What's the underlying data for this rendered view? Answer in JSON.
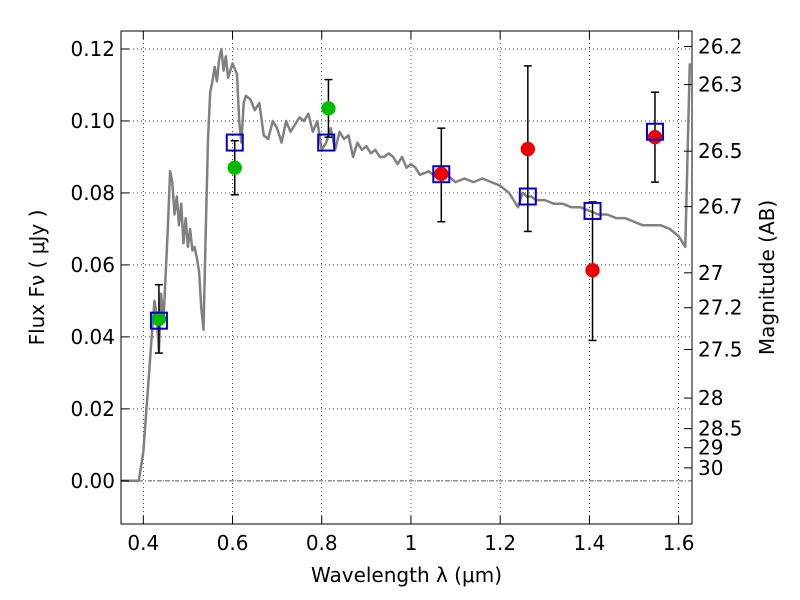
{
  "chart_data": {
    "type": "scatter",
    "xlabel": "Wavelength  λ (μm)",
    "ylabel": "Flux  Fν  ( μJy )",
    "ylabel_right": "Magnitude (AB)",
    "xlim": [
      0.35,
      1.63
    ],
    "ylim": [
      -0.012,
      0.125
    ],
    "grid": true,
    "x_ticks": [
      0.4,
      0.6,
      0.8,
      1.0,
      1.2,
      1.4,
      1.6
    ],
    "x_tick_labels": [
      "0.4",
      "0.6",
      "0.8",
      "1",
      "1.2",
      "1.4",
      "1.6"
    ],
    "y_ticks": [
      0.0,
      0.02,
      0.04,
      0.06,
      0.08,
      0.1,
      0.12
    ],
    "y_tick_labels": [
      "0.00",
      "0.02",
      "0.04",
      "0.06",
      "0.08",
      "0.10",
      "0.12"
    ],
    "right_ticks": [
      {
        "label": "26.2",
        "flux": 0.1207
      },
      {
        "label": "26.3",
        "flux": 0.1101
      },
      {
        "label": "26.5",
        "flux": 0.0916
      },
      {
        "label": "26.7",
        "flux": 0.0762
      },
      {
        "label": "27",
        "flux": 0.0578
      },
      {
        "label": "27.2",
        "flux": 0.0481
      },
      {
        "label": "27.5",
        "flux": 0.0365
      },
      {
        "label": "28",
        "flux": 0.023
      },
      {
        "label": "28.5",
        "flux": 0.0145
      },
      {
        "label": "29",
        "flux": 0.0092
      },
      {
        "label": "30",
        "flux": 0.0036
      }
    ],
    "colors": {
      "model": "#808080",
      "green": "#00bb00",
      "red": "#ee0000",
      "blue": "#0000cc",
      "errorbar": "#000000"
    },
    "model_spectrum": [
      [
        0.35,
        0.0
      ],
      [
        0.39,
        0.0
      ],
      [
        0.4,
        0.008
      ],
      [
        0.41,
        0.025
      ],
      [
        0.42,
        0.042
      ],
      [
        0.425,
        0.05
      ],
      [
        0.43,
        0.046
      ],
      [
        0.435,
        0.036
      ],
      [
        0.44,
        0.052
      ],
      [
        0.445,
        0.044
      ],
      [
        0.45,
        0.057
      ],
      [
        0.455,
        0.07
      ],
      [
        0.46,
        0.086
      ],
      [
        0.465,
        0.083
      ],
      [
        0.47,
        0.074
      ],
      [
        0.475,
        0.079
      ],
      [
        0.48,
        0.071
      ],
      [
        0.485,
        0.077
      ],
      [
        0.49,
        0.066
      ],
      [
        0.495,
        0.073
      ],
      [
        0.5,
        0.065
      ],
      [
        0.505,
        0.07
      ],
      [
        0.51,
        0.064
      ],
      [
        0.515,
        0.065
      ],
      [
        0.52,
        0.062
      ],
      [
        0.525,
        0.058
      ],
      [
        0.53,
        0.048
      ],
      [
        0.535,
        0.042
      ],
      [
        0.54,
        0.07
      ],
      [
        0.545,
        0.095
      ],
      [
        0.55,
        0.108
      ],
      [
        0.555,
        0.111
      ],
      [
        0.56,
        0.115
      ],
      [
        0.565,
        0.111
      ],
      [
        0.57,
        0.117
      ],
      [
        0.575,
        0.12
      ],
      [
        0.58,
        0.114
      ],
      [
        0.585,
        0.118
      ],
      [
        0.59,
        0.112
      ],
      [
        0.6,
        0.116
      ],
      [
        0.61,
        0.113
      ],
      [
        0.615,
        0.1
      ],
      [
        0.62,
        0.094
      ],
      [
        0.625,
        0.105
      ],
      [
        0.63,
        0.107
      ],
      [
        0.64,
        0.106
      ],
      [
        0.65,
        0.103
      ],
      [
        0.66,
        0.105
      ],
      [
        0.67,
        0.096
      ],
      [
        0.68,
        0.095
      ],
      [
        0.69,
        0.1
      ],
      [
        0.7,
        0.098
      ],
      [
        0.71,
        0.094
      ],
      [
        0.72,
        0.1
      ],
      [
        0.73,
        0.097
      ],
      [
        0.74,
        0.099
      ],
      [
        0.75,
        0.101
      ],
      [
        0.76,
        0.1
      ],
      [
        0.77,
        0.102
      ],
      [
        0.78,
        0.097
      ],
      [
        0.79,
        0.1
      ],
      [
        0.8,
        0.092
      ],
      [
        0.81,
        0.094
      ],
      [
        0.82,
        0.098
      ],
      [
        0.825,
        0.095
      ],
      [
        0.83,
        0.092
      ],
      [
        0.84,
        0.097
      ],
      [
        0.85,
        0.095
      ],
      [
        0.86,
        0.096
      ],
      [
        0.87,
        0.09
      ],
      [
        0.88,
        0.094
      ],
      [
        0.89,
        0.092
      ],
      [
        0.9,
        0.093
      ],
      [
        0.91,
        0.091
      ],
      [
        0.92,
        0.092
      ],
      [
        0.93,
        0.09
      ],
      [
        0.94,
        0.09
      ],
      [
        0.95,
        0.091
      ],
      [
        0.96,
        0.09
      ],
      [
        0.97,
        0.088
      ],
      [
        0.98,
        0.09
      ],
      [
        0.99,
        0.087
      ],
      [
        1.0,
        0.088
      ],
      [
        1.01,
        0.087
      ],
      [
        1.02,
        0.085
      ],
      [
        1.04,
        0.086
      ],
      [
        1.06,
        0.084
      ],
      [
        1.08,
        0.085
      ],
      [
        1.1,
        0.083
      ],
      [
        1.12,
        0.084
      ],
      [
        1.14,
        0.083
      ],
      [
        1.16,
        0.084
      ],
      [
        1.18,
        0.083
      ],
      [
        1.2,
        0.082
      ],
      [
        1.21,
        0.081
      ],
      [
        1.22,
        0.08
      ],
      [
        1.23,
        0.078
      ],
      [
        1.24,
        0.076
      ],
      [
        1.25,
        0.08
      ],
      [
        1.26,
        0.079
      ],
      [
        1.27,
        0.079
      ],
      [
        1.28,
        0.078
      ],
      [
        1.3,
        0.078
      ],
      [
        1.32,
        0.077
      ],
      [
        1.34,
        0.077
      ],
      [
        1.36,
        0.076
      ],
      [
        1.38,
        0.076
      ],
      [
        1.4,
        0.075
      ],
      [
        1.42,
        0.074
      ],
      [
        1.44,
        0.074
      ],
      [
        1.46,
        0.073
      ],
      [
        1.48,
        0.073
      ],
      [
        1.5,
        0.072
      ],
      [
        1.52,
        0.071
      ],
      [
        1.54,
        0.071
      ],
      [
        1.56,
        0.071
      ],
      [
        1.58,
        0.07
      ],
      [
        1.6,
        0.068
      ],
      [
        1.61,
        0.066
      ],
      [
        1.615,
        0.065
      ],
      [
        1.62,
        0.09
      ],
      [
        1.625,
        0.116
      ]
    ],
    "series": [
      {
        "marker": "circle",
        "color": "green",
        "points": [
          {
            "x": 0.435,
            "y": 0.045
          },
          {
            "x": 0.605,
            "y": 0.087
          },
          {
            "x": 0.815,
            "y": 0.1035
          }
        ]
      },
      {
        "marker": "circle",
        "color": "red",
        "points": [
          {
            "x": 1.068,
            "y": 0.0853
          },
          {
            "x": 1.262,
            "y": 0.0922
          },
          {
            "x": 1.407,
            "y": 0.0585
          },
          {
            "x": 1.547,
            "y": 0.0955
          }
        ]
      },
      {
        "marker": "square",
        "color": "blue",
        "points": [
          {
            "x": 0.435,
            "y": 0.0445
          },
          {
            "x": 0.605,
            "y": 0.094
          },
          {
            "x": 0.81,
            "y": 0.094
          },
          {
            "x": 1.068,
            "y": 0.0852
          },
          {
            "x": 1.262,
            "y": 0.079
          },
          {
            "x": 1.407,
            "y": 0.075
          },
          {
            "x": 1.547,
            "y": 0.097
          }
        ]
      }
    ],
    "errorbars": [
      {
        "x": 0.435,
        "low": 0.0355,
        "high": 0.0545
      },
      {
        "x": 0.605,
        "low": 0.0795,
        "high": 0.0945
      },
      {
        "x": 0.815,
        "low": 0.0955,
        "high": 0.1115
      },
      {
        "x": 1.068,
        "low": 0.072,
        "high": 0.098
      },
      {
        "x": 1.262,
        "low": 0.0693,
        "high": 0.1153
      },
      {
        "x": 1.407,
        "low": 0.039,
        "high": 0.0775
      },
      {
        "x": 1.547,
        "low": 0.083,
        "high": 0.108
      }
    ]
  }
}
